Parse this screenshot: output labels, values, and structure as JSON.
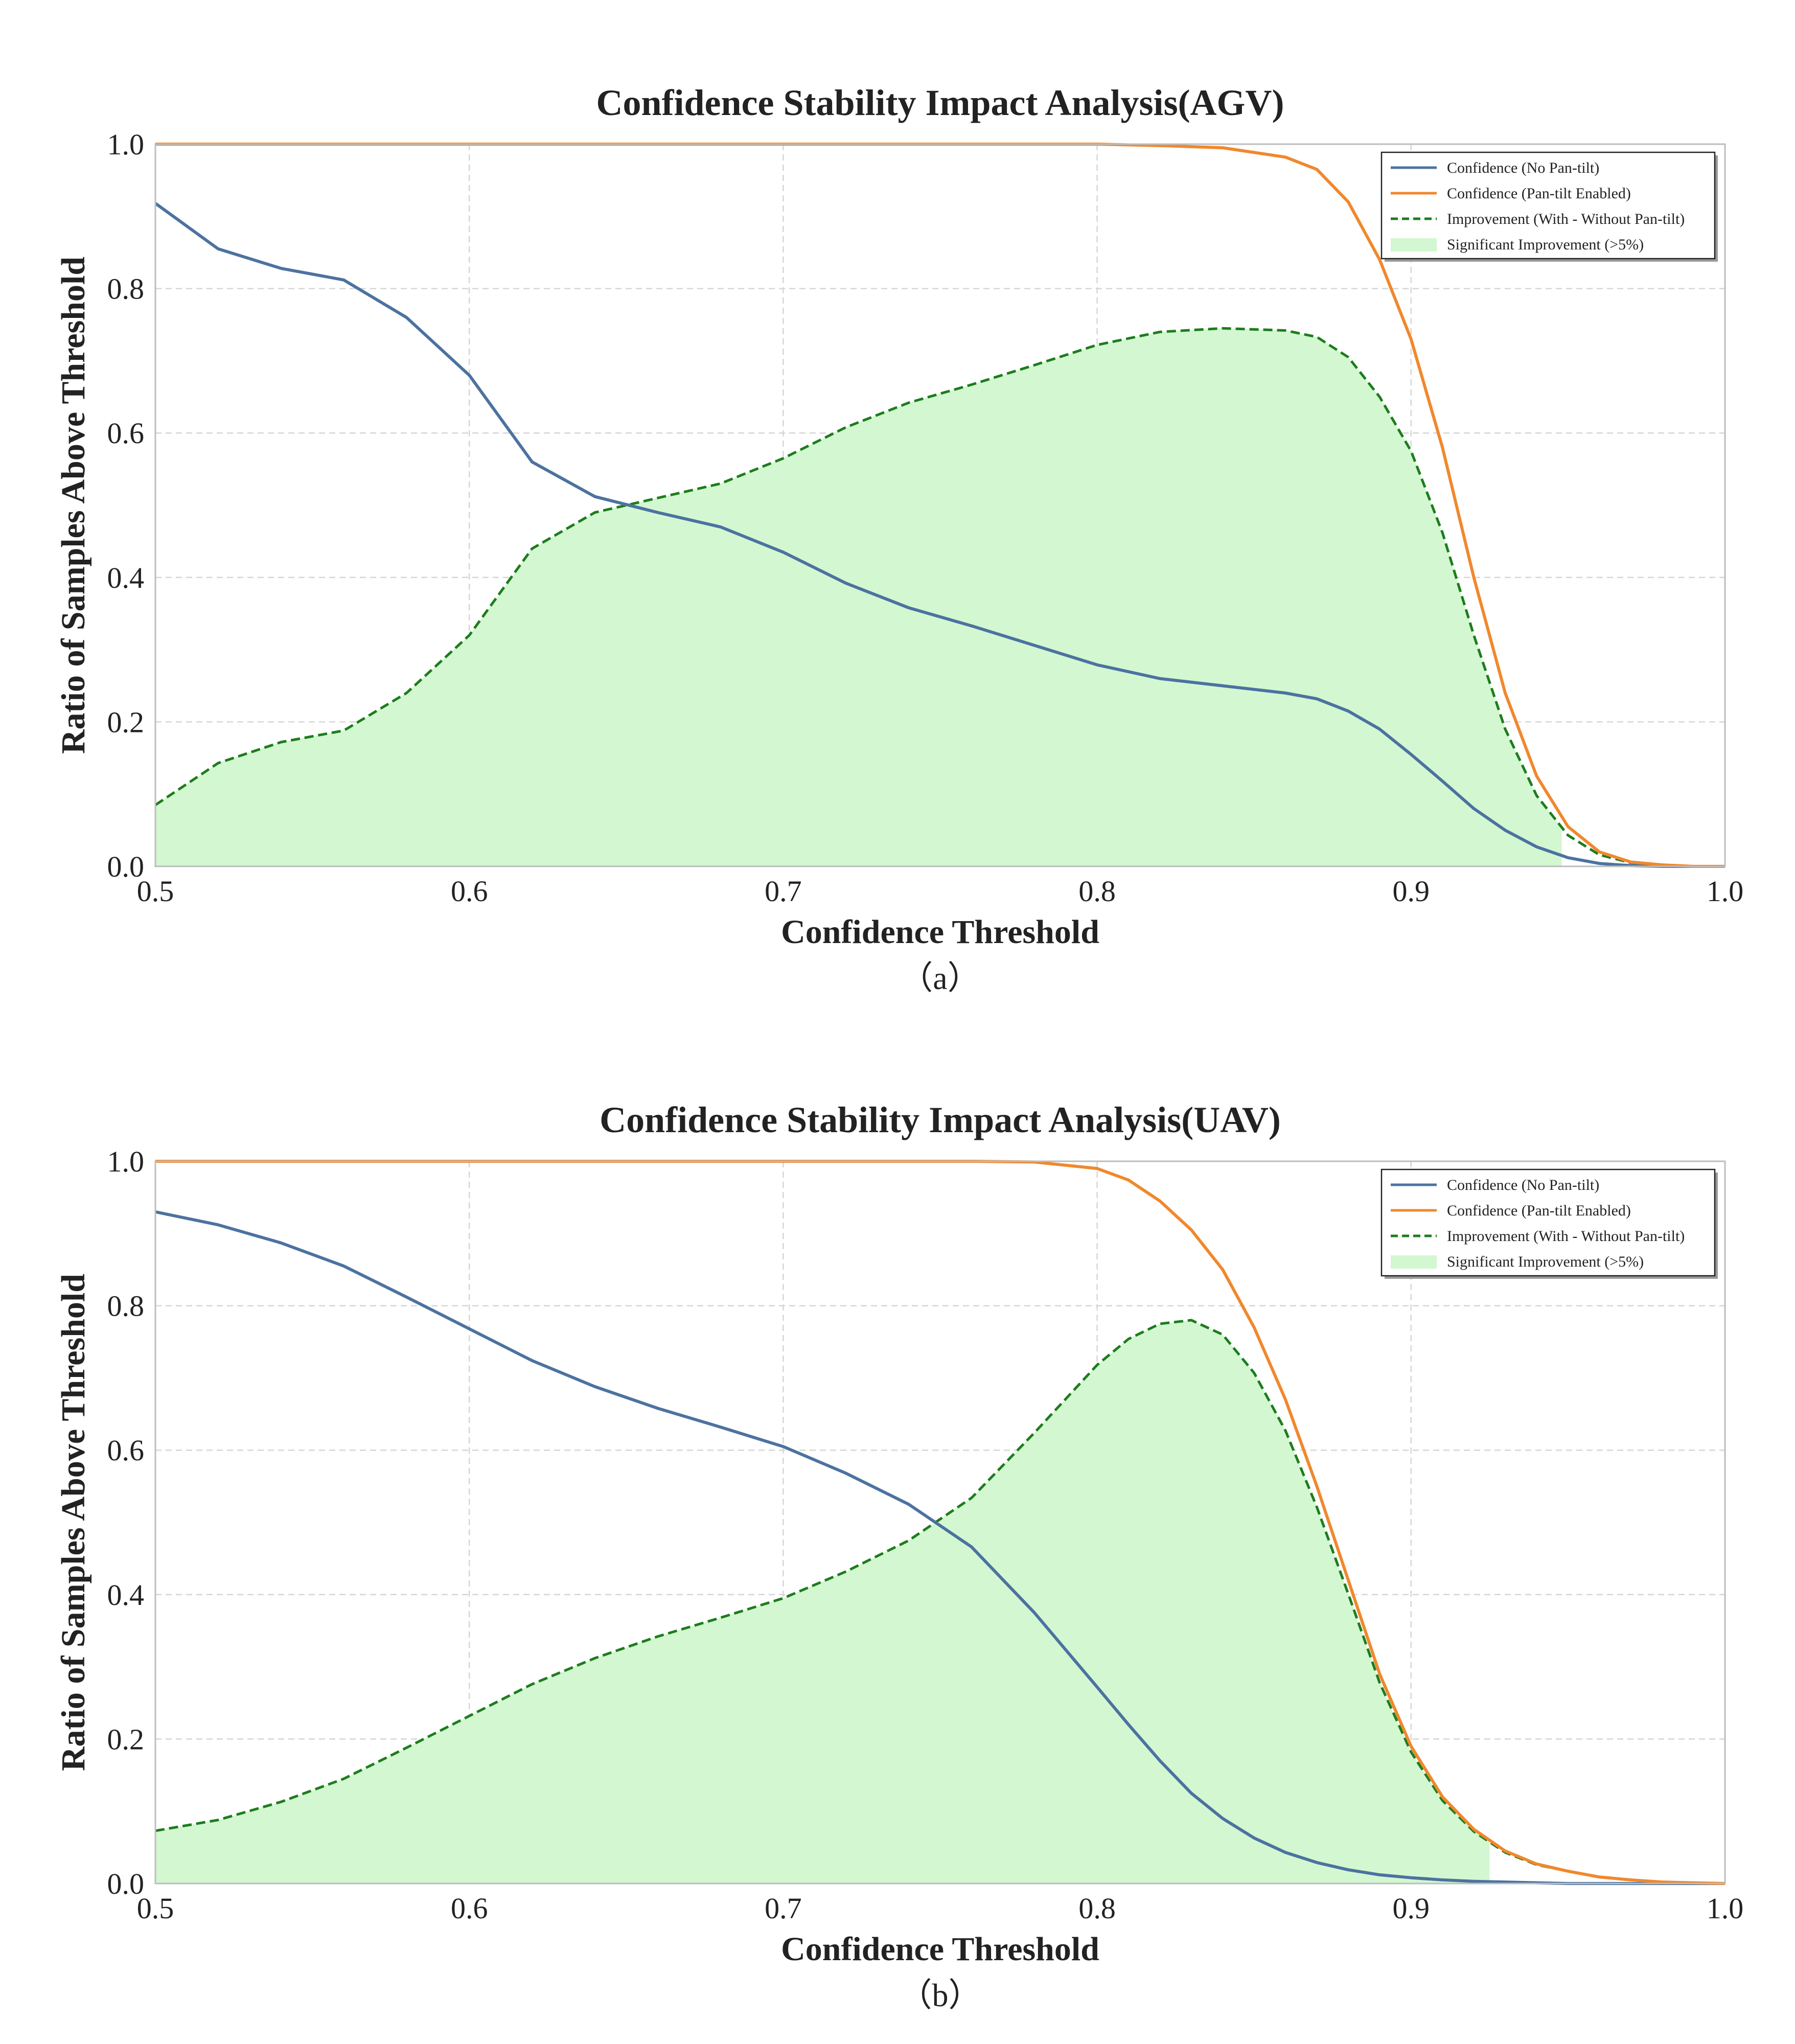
{
  "chart_data": [
    {
      "type": "line",
      "title": "Confidence Stability Impact Analysis(AGV)",
      "xlabel": "Confidence Threshold",
      "ylabel": "Ratio of Samples Above Threshold",
      "caption": "（a）",
      "xlim": [
        0.5,
        1.0
      ],
      "ylim": [
        0.0,
        1.0
      ],
      "xticks": [
        "0.5",
        "0.6",
        "0.7",
        "0.8",
        "0.9",
        "1.0"
      ],
      "yticks": [
        "0.0",
        "0.2",
        "0.4",
        "0.6",
        "0.8",
        "1.0"
      ],
      "grid": true,
      "legend_position": "top-right",
      "significant_threshold_x": 0.948,
      "x": [
        0.5,
        0.52,
        0.54,
        0.56,
        0.58,
        0.6,
        0.62,
        0.64,
        0.66,
        0.68,
        0.7,
        0.72,
        0.74,
        0.76,
        0.78,
        0.8,
        0.82,
        0.84,
        0.86,
        0.87,
        0.88,
        0.89,
        0.9,
        0.91,
        0.92,
        0.93,
        0.94,
        0.95,
        0.96,
        0.97,
        0.98,
        0.99,
        1.0
      ],
      "series": [
        {
          "name": "Confidence (No Pan-tilt)",
          "color": "#4c72a0",
          "style": "solid",
          "values": [
            0.918,
            0.855,
            0.828,
            0.812,
            0.76,
            0.68,
            0.56,
            0.512,
            0.49,
            0.47,
            0.435,
            0.392,
            0.358,
            0.333,
            0.306,
            0.279,
            0.26,
            0.25,
            0.24,
            0.232,
            0.215,
            0.19,
            0.155,
            0.118,
            0.08,
            0.05,
            0.027,
            0.012,
            0.004,
            0.001,
            0.0,
            0.0,
            0.0
          ]
        },
        {
          "name": "Confidence (Pan-tilt Enabled)",
          "color": "#f0882d",
          "style": "solid",
          "values": [
            1.0,
            1.0,
            1.0,
            1.0,
            1.0,
            1.0,
            1.0,
            1.0,
            1.0,
            1.0,
            1.0,
            1.0,
            1.0,
            1.0,
            1.0,
            1.0,
            0.998,
            0.995,
            0.982,
            0.965,
            0.92,
            0.84,
            0.73,
            0.58,
            0.4,
            0.24,
            0.125,
            0.055,
            0.02,
            0.006,
            0.002,
            0.0,
            0.0
          ]
        },
        {
          "name": "Improvement (With - Without Pan-tilt)",
          "color": "#1c7d1c",
          "style": "dashed",
          "values": [
            0.085,
            0.143,
            0.172,
            0.188,
            0.24,
            0.32,
            0.44,
            0.49,
            0.51,
            0.53,
            0.565,
            0.608,
            0.642,
            0.667,
            0.694,
            0.722,
            0.74,
            0.745,
            0.742,
            0.733,
            0.705,
            0.65,
            0.575,
            0.462,
            0.32,
            0.19,
            0.098,
            0.043,
            0.016,
            0.005,
            0.002,
            0.0,
            0.0
          ]
        },
        {
          "name": "Significant Improvement (>5%)",
          "color": "#d3f7d1",
          "style": "fill"
        }
      ]
    },
    {
      "type": "line",
      "title": "Confidence Stability Impact Analysis(UAV)",
      "xlabel": "Confidence Threshold",
      "ylabel": "Ratio of Samples Above Threshold",
      "caption": "（b）",
      "xlim": [
        0.5,
        1.0
      ],
      "ylim": [
        0.0,
        1.0
      ],
      "xticks": [
        "0.5",
        "0.6",
        "0.7",
        "0.8",
        "0.9",
        "1.0"
      ],
      "yticks": [
        "0.0",
        "0.2",
        "0.4",
        "0.6",
        "0.8",
        "1.0"
      ],
      "grid": true,
      "legend_position": "top-right",
      "significant_threshold_x": 0.925,
      "x": [
        0.5,
        0.52,
        0.54,
        0.56,
        0.58,
        0.6,
        0.62,
        0.64,
        0.66,
        0.68,
        0.7,
        0.72,
        0.74,
        0.76,
        0.78,
        0.8,
        0.81,
        0.82,
        0.83,
        0.84,
        0.85,
        0.86,
        0.87,
        0.88,
        0.89,
        0.9,
        0.91,
        0.92,
        0.93,
        0.94,
        0.95,
        0.96,
        0.97,
        0.98,
        0.99,
        1.0
      ],
      "series": [
        {
          "name": "Confidence (No Pan-tilt)",
          "color": "#4c72a0",
          "style": "solid",
          "values": [
            0.93,
            0.912,
            0.887,
            0.855,
            0.812,
            0.768,
            0.724,
            0.688,
            0.658,
            0.632,
            0.605,
            0.568,
            0.525,
            0.466,
            0.375,
            0.272,
            0.22,
            0.17,
            0.125,
            0.09,
            0.063,
            0.043,
            0.029,
            0.019,
            0.012,
            0.008,
            0.005,
            0.003,
            0.002,
            0.001,
            0.0,
            0.0,
            0.0,
            0.0,
            0.0,
            0.0
          ]
        },
        {
          "name": "Confidence (Pan-tilt Enabled)",
          "color": "#f0882d",
          "style": "solid",
          "values": [
            1.0,
            1.0,
            1.0,
            1.0,
            1.0,
            1.0,
            1.0,
            1.0,
            1.0,
            1.0,
            1.0,
            1.0,
            1.0,
            1.0,
            0.999,
            0.99,
            0.974,
            0.945,
            0.905,
            0.85,
            0.77,
            0.67,
            0.55,
            0.42,
            0.29,
            0.19,
            0.12,
            0.075,
            0.045,
            0.027,
            0.017,
            0.009,
            0.005,
            0.002,
            0.001,
            0.0
          ]
        },
        {
          "name": "Improvement (With - Without Pan-tilt)",
          "color": "#1c7d1c",
          "style": "dashed",
          "values": [
            0.073,
            0.088,
            0.113,
            0.145,
            0.188,
            0.232,
            0.276,
            0.312,
            0.342,
            0.368,
            0.395,
            0.432,
            0.475,
            0.534,
            0.624,
            0.718,
            0.754,
            0.775,
            0.78,
            0.76,
            0.707,
            0.627,
            0.521,
            0.401,
            0.278,
            0.182,
            0.115,
            0.072,
            0.043,
            0.026,
            0.017,
            0.009,
            0.005,
            0.002,
            0.001,
            0.0
          ]
        },
        {
          "name": "Significant Improvement (>5%)",
          "color": "#d3f7d1",
          "style": "fill"
        }
      ]
    }
  ]
}
